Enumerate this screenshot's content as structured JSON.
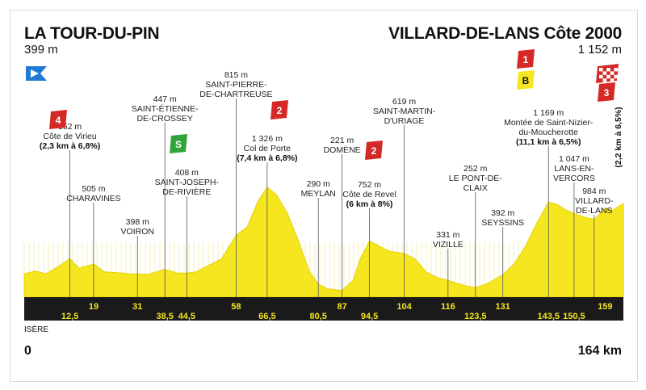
{
  "chart_data": {
    "type": "area",
    "start": {
      "name": "LA TOUR-DU-PIN",
      "altitude": "399 m"
    },
    "finish": {
      "name": "VILLARD-DE-LANS Côte 2000",
      "altitude": "1 152 m"
    },
    "distance_start": "0",
    "distance_end": "164 km",
    "region": "ISÈRE",
    "xlim": [
      0,
      164
    ],
    "ylim": [
      0,
      1400
    ],
    "profile": [
      [
        0,
        399
      ],
      [
        3,
        430
      ],
      [
        6,
        400
      ],
      [
        9,
        470
      ],
      [
        12.5,
        562
      ],
      [
        15,
        460
      ],
      [
        19,
        505
      ],
      [
        22,
        420
      ],
      [
        26,
        410
      ],
      [
        29,
        400
      ],
      [
        31,
        398
      ],
      [
        34,
        395
      ],
      [
        36,
        420
      ],
      [
        38.5,
        447
      ],
      [
        40,
        430
      ],
      [
        42,
        408
      ],
      [
        44.5,
        408
      ],
      [
        47,
        420
      ],
      [
        50,
        480
      ],
      [
        54,
        560
      ],
      [
        58,
        815
      ],
      [
        61,
        900
      ],
      [
        64,
        1180
      ],
      [
        66.5,
        1326
      ],
      [
        69,
        1250
      ],
      [
        72,
        1050
      ],
      [
        75,
        760
      ],
      [
        78,
        430
      ],
      [
        80.5,
        290
      ],
      [
        83,
        240
      ],
      [
        87,
        221
      ],
      [
        90,
        330
      ],
      [
        92,
        560
      ],
      [
        94.5,
        752
      ],
      [
        97,
        700
      ],
      [
        100,
        640
      ],
      [
        104,
        619
      ],
      [
        107,
        560
      ],
      [
        110,
        420
      ],
      [
        113,
        360
      ],
      [
        116,
        331
      ],
      [
        119,
        290
      ],
      [
        121,
        270
      ],
      [
        123.5,
        252
      ],
      [
        127,
        300
      ],
      [
        131,
        392
      ],
      [
        134,
        500
      ],
      [
        137,
        680
      ],
      [
        140,
        920
      ],
      [
        143.5,
        1169
      ],
      [
        146,
        1140
      ],
      [
        148,
        1090
      ],
      [
        150.5,
        1047
      ],
      [
        153,
        1010
      ],
      [
        156,
        984
      ],
      [
        159,
        1100
      ],
      [
        161,
        1080
      ],
      [
        164,
        1152
      ]
    ],
    "km_marks_top": [
      "19",
      "31",
      "58",
      "87",
      "104",
      "116",
      "131",
      "159"
    ],
    "km_marks_bottom": [
      "12,5",
      "38,5",
      "44,5",
      "66,5",
      "80,5",
      "94,5",
      "123,5",
      "143,5",
      "150,5"
    ],
    "km_positions_top": [
      19,
      31,
      58,
      87,
      104,
      116,
      131,
      159
    ],
    "km_positions_bottom": [
      12.5,
      38.5,
      44.5,
      66.5,
      80.5,
      94.5,
      123.5,
      143.5,
      150.5
    ],
    "waypoints": [
      {
        "km": 12.5,
        "peak": 562,
        "lines": [
          "562 m",
          "Côte de Virieu"
        ],
        "bold": [
          "(2,3 km à 6,8%)"
        ],
        "category": "4"
      },
      {
        "km": 19,
        "peak": 505,
        "lines": [
          "505 m",
          "CHARAVINES"
        ],
        "bold": []
      },
      {
        "km": 31,
        "peak": 398,
        "lines": [
          "398 m",
          "VOIRON"
        ],
        "bold": []
      },
      {
        "km": 38.5,
        "peak": 447,
        "lines": [
          "447 m",
          "SAINT-ÉTIENNE-",
          "DE-CROSSEY"
        ],
        "bold": []
      },
      {
        "km": 44.5,
        "peak": 408,
        "lines": [
          "408 m",
          "SAINT-JOSEPH-",
          "DE-RIVIÈRE"
        ],
        "bold": [],
        "sprint": "S"
      },
      {
        "km": 58,
        "peak": 815,
        "lines": [
          "815 m",
          "SAINT-PIERRE-",
          "DE-CHARTREUSE"
        ],
        "bold": []
      },
      {
        "km": 66.5,
        "peak": 1326,
        "lines": [
          "1 326 m",
          "Col de Porte"
        ],
        "bold": [
          "(7,4 km à 6,8%)"
        ],
        "category": "2"
      },
      {
        "km": 80.5,
        "peak": 290,
        "lines": [
          "290 m",
          "MEYLAN"
        ],
        "bold": []
      },
      {
        "km": 87,
        "peak": 221,
        "lines": [
          "221 m",
          "DOMÈNE"
        ],
        "bold": []
      },
      {
        "km": 94.5,
        "peak": 752,
        "lines": [
          "752 m",
          "Côte de Revel"
        ],
        "bold": [
          "(6 km à 8%)"
        ],
        "category": "2"
      },
      {
        "km": 104,
        "peak": 619,
        "lines": [
          "619 m",
          "SAINT-MARTIN-",
          "D'URIAGE"
        ],
        "bold": []
      },
      {
        "km": 116,
        "peak": 331,
        "lines": [
          "331 m",
          "VIZILLE"
        ],
        "bold": []
      },
      {
        "km": 123.5,
        "peak": 252,
        "lines": [
          "252 m",
          "LE PONT-DE-",
          "CLAIX"
        ],
        "bold": []
      },
      {
        "km": 131,
        "peak": 392,
        "lines": [
          "392 m",
          "SEYSSINS"
        ],
        "bold": []
      },
      {
        "km": 143.5,
        "peak": 1169,
        "lines": [
          "1 169 m",
          "Montée de Saint-Nizier-",
          "du-Moucherotte"
        ],
        "bold": [
          "(11,1 km à 6,5%)"
        ],
        "category": "1",
        "bonus": "B"
      },
      {
        "km": 150.5,
        "peak": 1047,
        "lines": [
          "1 047 m",
          "LANS-EN-",
          "VERCORS"
        ],
        "bold": []
      },
      {
        "km": 156,
        "peak": 984,
        "lines": [
          "984 m",
          "VILLARD-",
          "DE-LANS"
        ],
        "bold": []
      },
      {
        "km": 164,
        "peak": 1152,
        "lines": [],
        "bold": [
          "(2,2 km à 6,5%)"
        ],
        "category": "3",
        "finish_flag": true
      }
    ],
    "colors": {
      "profile_fill": "#f5e61f",
      "profile_stroke": "#e6d200",
      "band": "#1a1a1a",
      "km_text": "#f5e61f",
      "climb_badge": "#d42a27",
      "bonus_badge": "#f5e61f",
      "sprint_badge": "#2fa43a",
      "start_flag": "#1e7bd4"
    }
  }
}
